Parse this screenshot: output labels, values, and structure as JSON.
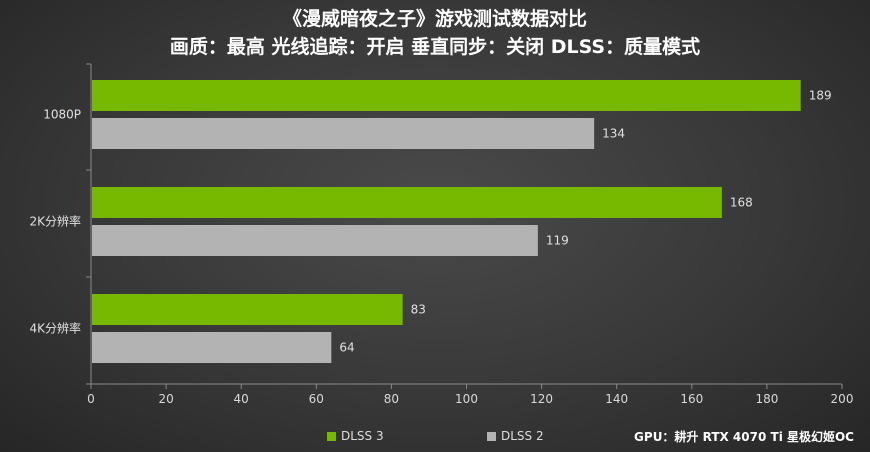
{
  "chart_data": {
    "type": "bar",
    "orientation": "horizontal",
    "title": "《漫威暗夜之子》游戏测试数据对比",
    "subtitle": "画质：最高  光线追踪：开启  垂直同步：关闭 DLSS：质量模式",
    "categories": [
      "1080P",
      "2K分辨率",
      "4K分辨率"
    ],
    "series": [
      {
        "name": "DLSS 3",
        "color": "#76b900",
        "values": [
          189,
          168,
          83
        ]
      },
      {
        "name": "DLSS 2",
        "color": "#b3b3b3",
        "values": [
          134,
          119,
          64
        ]
      }
    ],
    "xlim": [
      0,
      200
    ],
    "xticks": [
      0,
      20,
      40,
      60,
      80,
      100,
      120,
      140,
      160,
      180,
      200
    ],
    "grid": false,
    "legend_position": "bottom"
  },
  "footer": {
    "gpu_note": "GPU：耕升 RTX 4070 Ti 星极幻姬OC"
  }
}
